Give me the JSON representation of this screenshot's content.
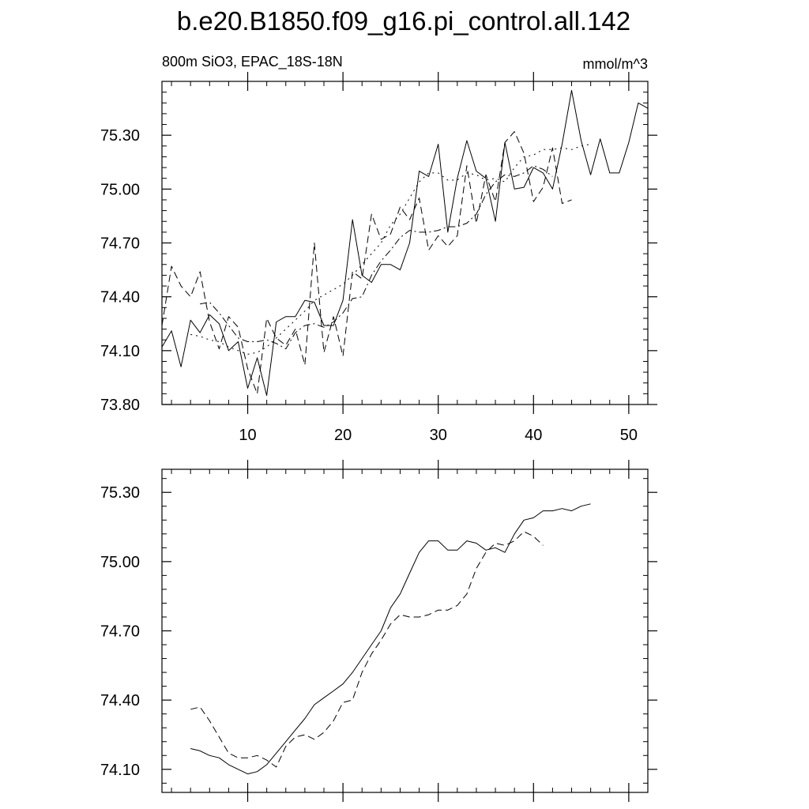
{
  "chart_data": {
    "title": "b.e20.B1850.f09_g16.pi_control.all.142",
    "panels": [
      {
        "type": "line",
        "subtitle_left": "800m SiO3, EPAC_18S-18N",
        "subtitle_right": "mmol/m^3",
        "xlim": [
          1,
          52
        ],
        "ylim": [
          73.8,
          75.6
        ],
        "x_ticks": [
          10,
          20,
          30,
          40,
          50
        ],
        "x_tick_labels": [
          "10",
          "20",
          "30",
          "40",
          "50"
        ],
        "y_ticks": [
          73.8,
          74.1,
          74.4,
          74.7,
          75.0,
          75.3
        ],
        "y_tick_labels": [
          "73.80",
          "74.10",
          "74.40",
          "74.70",
          "75.00",
          "75.30"
        ],
        "series": [
          {
            "style": "solid",
            "x_start": 1,
            "values": [
              74.12,
              74.21,
              74.01,
              74.27,
              74.2,
              74.3,
              74.25,
              74.1,
              74.15,
              73.89,
              74.06,
              73.85,
              74.26,
              74.29,
              74.29,
              74.38,
              74.37,
              74.24,
              74.24,
              74.38,
              74.83,
              74.52,
              74.48,
              74.58,
              74.58,
              74.55,
              74.7,
              75.1,
              75.07,
              75.25,
              74.76,
              75.06,
              75.27,
              75.1,
              75.06,
              74.82,
              75.26,
              75.0,
              75.01,
              75.12,
              75.09,
              75.0,
              75.25,
              75.55,
              75.27,
              75.08,
              75.28,
              75.09,
              75.09,
              75.26,
              75.48,
              75.45
            ]
          },
          {
            "style": "dash",
            "x_start": 1,
            "values": [
              74.24,
              74.57,
              74.46,
              74.4,
              74.54,
              74.26,
              74.11,
              74.29,
              74.23,
              74.0,
              73.86,
              74.28,
              74.17,
              74.13,
              74.22,
              74.02,
              74.7,
              74.09,
              74.29,
              74.07,
              74.54,
              74.5,
              74.86,
              74.72,
              74.75,
              74.9,
              74.83,
              74.95,
              74.66,
              74.74,
              74.68,
              74.74,
              75.13,
              74.81,
              75.08,
              74.93,
              75.26,
              75.32,
              75.2,
              74.93,
              75.01,
              75.23,
              74.92,
              74.94
            ]
          },
          {
            "style": "dot",
            "x_start": 4,
            "values": [
              74.19,
              74.18,
              74.16,
              74.15,
              74.12,
              74.1,
              74.08,
              74.09,
              74.12,
              74.17,
              74.22,
              74.27,
              74.32,
              74.38,
              74.41,
              74.44,
              74.47,
              74.52,
              74.58,
              74.64,
              74.7,
              74.8,
              74.86,
              74.95,
              75.04,
              75.09,
              75.09,
              75.05,
              75.05,
              75.09,
              75.08,
              75.05,
              75.06,
              75.04,
              75.12,
              75.18,
              75.19,
              75.22,
              75.22,
              75.23,
              75.22,
              75.24,
              75.25
            ]
          },
          {
            "style": "dashdot",
            "x_start": 5,
            "values": [
              74.36,
              74.37,
              74.31,
              74.24,
              74.17,
              74.15,
              74.15,
              74.16,
              74.14,
              74.11,
              74.2,
              74.24,
              74.25,
              74.23,
              74.26,
              74.31,
              74.39,
              74.4,
              74.52,
              74.6,
              74.66,
              74.73,
              74.77,
              74.76,
              74.76,
              74.77,
              74.79,
              74.79,
              74.81,
              74.86,
              74.97,
              75.04,
              75.08,
              75.07,
              75.09,
              75.13,
              75.11,
              75.07
            ]
          }
        ]
      },
      {
        "type": "line",
        "xlim": [
          1,
          52
        ],
        "ylim": [
          74.0,
          75.4
        ],
        "x_ticks": [
          10,
          20,
          30,
          40,
          50
        ],
        "y_ticks": [
          74.1,
          74.4,
          74.7,
          75.0,
          75.3
        ],
        "y_tick_labels": [
          "74.10",
          "74.40",
          "74.70",
          "75.00",
          "75.30"
        ],
        "series": [
          {
            "style": "solid",
            "x_start": 4,
            "values": [
              74.19,
              74.18,
              74.16,
              74.15,
              74.12,
              74.1,
              74.08,
              74.09,
              74.12,
              74.17,
              74.22,
              74.27,
              74.32,
              74.38,
              74.41,
              74.44,
              74.47,
              74.52,
              74.58,
              74.64,
              74.7,
              74.8,
              74.86,
              74.95,
              75.04,
              75.09,
              75.09,
              75.05,
              75.05,
              75.09,
              75.08,
              75.05,
              75.06,
              75.04,
              75.12,
              75.18,
              75.19,
              75.22,
              75.22,
              75.23,
              75.22,
              75.24,
              75.25
            ]
          },
          {
            "style": "dash",
            "x_start": 4,
            "values": [
              74.36,
              74.37,
              74.31,
              74.24,
              74.17,
              74.15,
              74.15,
              74.16,
              74.14,
              74.11,
              74.2,
              74.24,
              74.25,
              74.23,
              74.26,
              74.31,
              74.39,
              74.4,
              74.52,
              74.6,
              74.66,
              74.73,
              74.77,
              74.76,
              74.76,
              74.77,
              74.79,
              74.79,
              74.81,
              74.86,
              74.97,
              75.04,
              75.08,
              75.07,
              75.09,
              75.13,
              75.11,
              75.07
            ]
          }
        ]
      }
    ]
  }
}
